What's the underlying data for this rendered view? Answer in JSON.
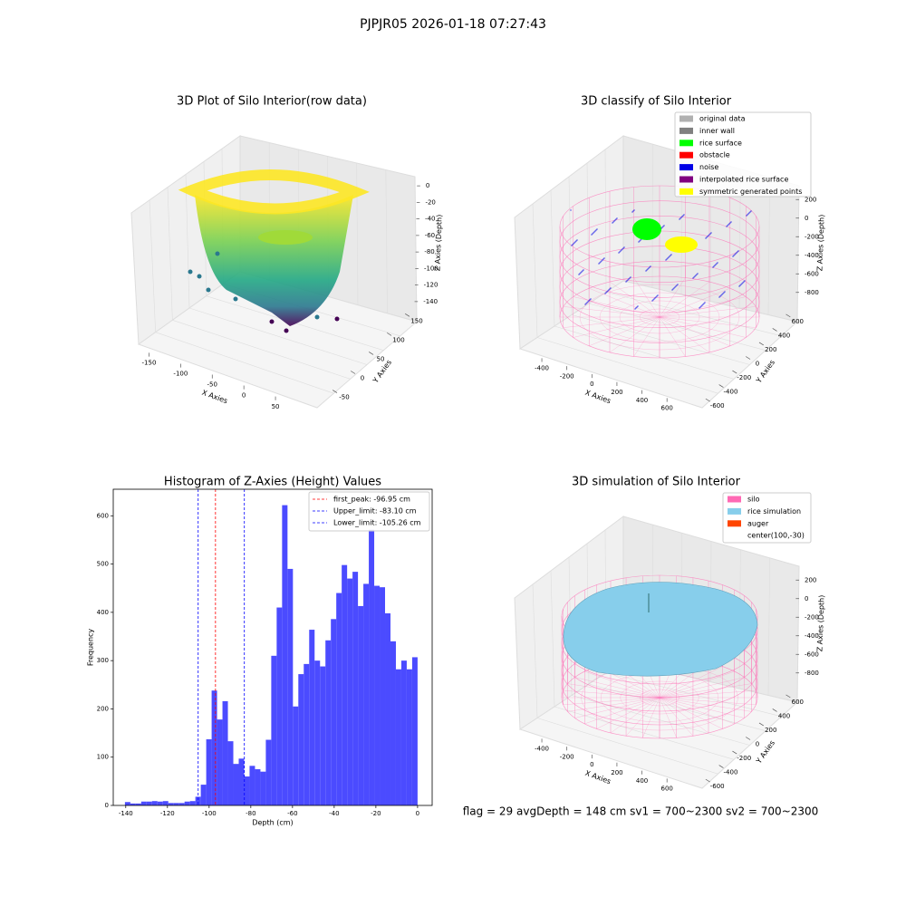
{
  "suptitle": "PJPJR05 2026-01-18 07:27:43",
  "footer": "flag = 29  avgDepth = 148 cm  sv1 = 700~2300  sv2 = 700~2300",
  "chart_data": [
    {
      "type": "scatter3d",
      "title": "3D Plot of Silo Interior(row data)",
      "xlabel": "X Axies",
      "ylabel": "Y Axies",
      "zlabel": "Z Axies (Depth)",
      "xlim": [
        -165,
        80
      ],
      "xticks": [
        -150,
        -100,
        -50,
        0,
        50
      ],
      "ylim": [
        -70,
        165
      ],
      "yticks": [
        -50,
        0,
        50,
        100,
        150
      ],
      "zlim": [
        -150,
        10
      ],
      "zticks": [
        0,
        -20,
        -40,
        -60,
        -80,
        -100,
        -120,
        -140
      ]
    },
    {
      "type": "classify3d",
      "title": "3D classify of Silo Interior",
      "xlabel": "X Axies",
      "ylabel": "Y Axies",
      "zlabel": "Z Axies (Depth)",
      "xlim": [
        -480,
        700
      ],
      "xticks": [
        -400,
        -200,
        0,
        200,
        400,
        600
      ],
      "ylim": [
        -650,
        650
      ],
      "yticks": [
        600,
        400,
        200,
        0,
        -200,
        -400,
        -600
      ],
      "zlim": [
        -900,
        300
      ],
      "zticks": [
        200,
        0,
        -200,
        -400,
        -600,
        -800
      ],
      "legend": [
        {
          "name": "original data",
          "color": "#b0b0b0"
        },
        {
          "name": "inner wall",
          "color": "#808080"
        },
        {
          "name": "rice surface",
          "color": "#00ff00"
        },
        {
          "name": "obstacle",
          "color": "#ff0000"
        },
        {
          "name": "noise",
          "color": "#0000e6"
        },
        {
          "name": "interpolated rice surface",
          "color": "#800080"
        },
        {
          "name": "symmetric generated points",
          "color": "#ffff00"
        }
      ]
    },
    {
      "type": "histogram",
      "title": "Histogram of Z-Axies (Height) Values",
      "xlabel": "Depth (cm)",
      "ylabel": "Frequency",
      "color": "#4b4bff",
      "bins": [
        -140.4,
        -137.8,
        -135.2,
        -132.6,
        -130,
        -127.4,
        -124.8,
        -122.2,
        -119.6,
        -117,
        -114.4,
        -111.8,
        -109.2,
        -106.6,
        -104,
        -101.4,
        -98.8,
        -96.2,
        -93.6,
        -91,
        -88.4,
        -85.8,
        -83.2,
        -80.6,
        -78,
        -75.4,
        -72.8,
        -70.2,
        -67.6,
        -65,
        -62.4,
        -59.8,
        -57.2,
        -54.6,
        -52,
        -49.4,
        -46.8,
        -44.2,
        -41.6,
        -39,
        -36.4,
        -33.8,
        -31.2,
        -28.6,
        -26,
        -23.4,
        -20.8,
        -18.2,
        -15.6,
        -13,
        -10.4,
        -7.8,
        -5.2,
        -2.6,
        0
      ],
      "counts": [
        7,
        4,
        4,
        8,
        8,
        9,
        8,
        9,
        5,
        5,
        5,
        8,
        9,
        18,
        43,
        137,
        238,
        178,
        216,
        133,
        86,
        97,
        60,
        82,
        75,
        70,
        136,
        310,
        410,
        622,
        490,
        205,
        272,
        293,
        364,
        300,
        288,
        342,
        386,
        440,
        498,
        470,
        484,
        413,
        459,
        571,
        455,
        452,
        398,
        340,
        282,
        300,
        282,
        307
      ],
      "xlim": [
        -146,
        7
      ],
      "xticks": [
        -140,
        -120,
        -100,
        -80,
        -60,
        -40,
        -20,
        0
      ],
      "ylim": [
        0,
        655
      ],
      "yticks": [
        0,
        100,
        200,
        300,
        400,
        500,
        600
      ],
      "lines": [
        {
          "name": "first_peak: -96.95 cm",
          "value": -96.95,
          "color": "#ff0000"
        },
        {
          "name": "Upper_limit: -83.10 cm",
          "value": -83.1,
          "color": "#0000ff"
        },
        {
          "name": "Lower_limit: -105.26 cm",
          "value": -105.26,
          "color": "#0000ff"
        }
      ]
    },
    {
      "type": "sim3d",
      "title": "3D simulation of Silo Interior",
      "xlabel": "X Axies",
      "ylabel": "Y Axies",
      "zlabel": "Z Axies (Depth)",
      "xlim": [
        -480,
        700
      ],
      "xticks": [
        -400,
        -200,
        0,
        200,
        400,
        600
      ],
      "ylim": [
        -650,
        650
      ],
      "yticks": [
        600,
        400,
        200,
        0,
        -200,
        -400,
        -600
      ],
      "zlim": [
        -900,
        300
      ],
      "zticks": [
        200,
        0,
        -200,
        -400,
        -600,
        -800
      ],
      "legend": [
        {
          "name": "silo",
          "color": "#ff69b4"
        },
        {
          "name": "rice simulation",
          "color": "#87ceeb"
        },
        {
          "name": "auger",
          "color": "#ff4500"
        },
        {
          "name": "center(100,-30)"
        }
      ]
    }
  ]
}
